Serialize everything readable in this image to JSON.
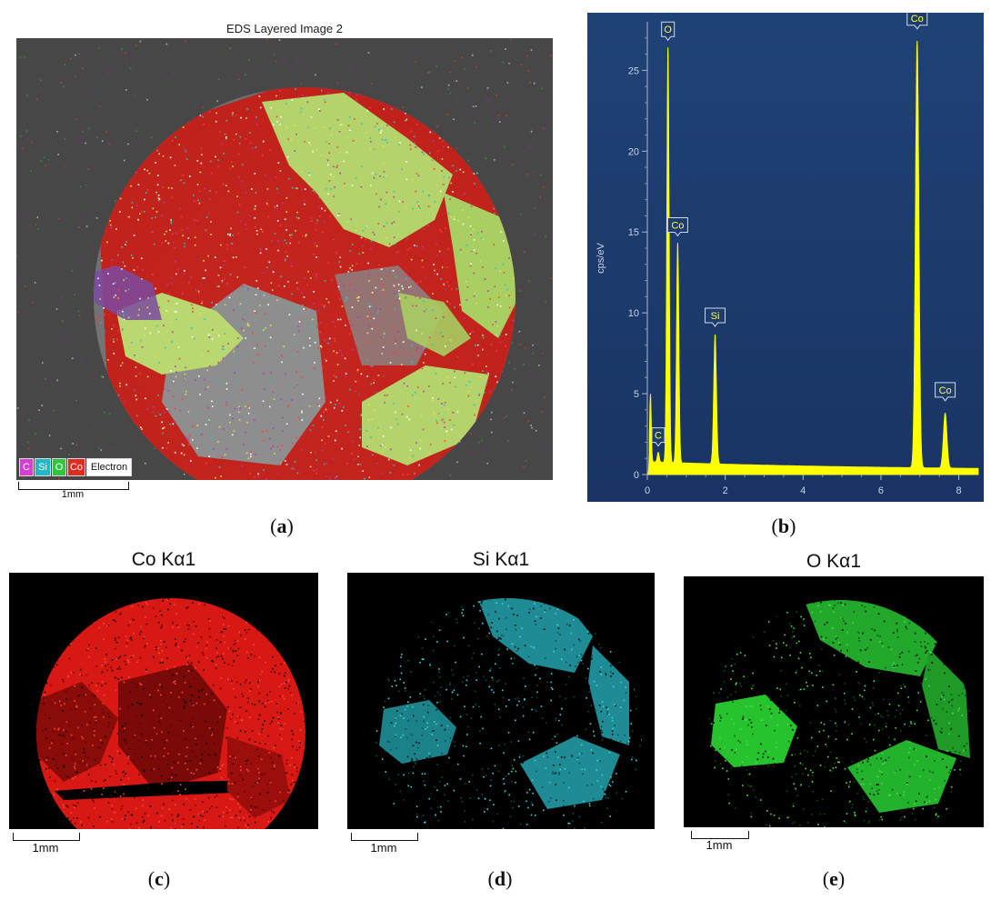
{
  "panel_a": {
    "title": "EDS Layered Image 2",
    "legend": [
      {
        "label": "C",
        "color": "#d43fd4"
      },
      {
        "label": "Si",
        "color": "#20b8c8"
      },
      {
        "label": "O",
        "color": "#2fc63a"
      },
      {
        "label": "Co",
        "color": "#e32a22"
      },
      {
        "label": "Electron",
        "color": "#ffffff"
      }
    ],
    "scale_label": "1mm",
    "caption": "a"
  },
  "panel_b": {
    "caption": "b",
    "chart_data": {
      "type": "line",
      "ylabel": "cps/eV",
      "xlabel": "",
      "xlim": [
        0,
        8.5
      ],
      "ylim": [
        0,
        28
      ],
      "x_ticks": [
        0,
        2,
        4,
        6,
        8
      ],
      "y_ticks": [
        0,
        5,
        10,
        15,
        20,
        25
      ],
      "peaks": [
        {
          "label": "C",
          "x": 0.28,
          "y": 1.2
        },
        {
          "label": "O",
          "x": 0.53,
          "y": 26.3
        },
        {
          "label": "Co",
          "x": 0.78,
          "y": 14.2
        },
        {
          "label": "Si",
          "x": 1.74,
          "y": 8.6
        },
        {
          "label": "Co",
          "x": 6.93,
          "y": 27.0
        },
        {
          "label": "Co",
          "x": 7.65,
          "y": 4.0
        }
      ],
      "line_color": "#ffff00",
      "background": "#1c3a6b"
    }
  },
  "panel_c": {
    "title": "Co Kα1",
    "scale_label": "1mm",
    "caption": "c",
    "color": "#e8201a"
  },
  "panel_d": {
    "title": "Si Kα1",
    "scale_label": "1mm",
    "caption": "d",
    "color": "#27b9c6"
  },
  "panel_e": {
    "title": "O Kα1",
    "scale_label": "1mm",
    "caption": "e",
    "color": "#27c92f"
  }
}
